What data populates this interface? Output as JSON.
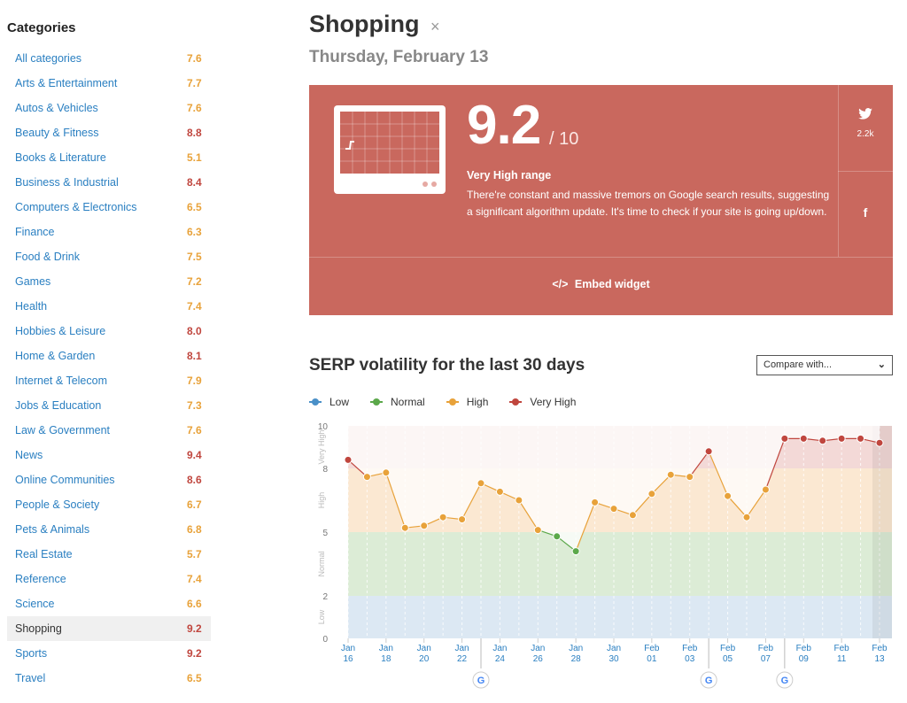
{
  "sidebar": {
    "title": "Categories",
    "items": [
      {
        "label": "All categories",
        "score": "7.6",
        "color": "#e8a23a"
      },
      {
        "label": "Arts & Entertainment",
        "score": "7.7",
        "color": "#e8a23a"
      },
      {
        "label": "Autos & Vehicles",
        "score": "7.6",
        "color": "#e8a23a"
      },
      {
        "label": "Beauty & Fitness",
        "score": "8.8",
        "color": "#c0463e"
      },
      {
        "label": "Books & Literature",
        "score": "5.1",
        "color": "#e8a23a"
      },
      {
        "label": "Business & Industrial",
        "score": "8.4",
        "color": "#c0463e"
      },
      {
        "label": "Computers & Electronics",
        "score": "6.5",
        "color": "#e8a23a"
      },
      {
        "label": "Finance",
        "score": "6.3",
        "color": "#e8a23a"
      },
      {
        "label": "Food & Drink",
        "score": "7.5",
        "color": "#e8a23a"
      },
      {
        "label": "Games",
        "score": "7.2",
        "color": "#e8a23a"
      },
      {
        "label": "Health",
        "score": "7.4",
        "color": "#e8a23a"
      },
      {
        "label": "Hobbies & Leisure",
        "score": "8.0",
        "color": "#c0463e"
      },
      {
        "label": "Home & Garden",
        "score": "8.1",
        "color": "#c0463e"
      },
      {
        "label": "Internet & Telecom",
        "score": "7.9",
        "color": "#e8a23a"
      },
      {
        "label": "Jobs & Education",
        "score": "7.3",
        "color": "#e8a23a"
      },
      {
        "label": "Law & Government",
        "score": "7.6",
        "color": "#e8a23a"
      },
      {
        "label": "News",
        "score": "9.4",
        "color": "#c0463e"
      },
      {
        "label": "Online Communities",
        "score": "8.6",
        "color": "#c0463e"
      },
      {
        "label": "People & Society",
        "score": "6.7",
        "color": "#e8a23a"
      },
      {
        "label": "Pets & Animals",
        "score": "6.8",
        "color": "#e8a23a"
      },
      {
        "label": "Real Estate",
        "score": "5.7",
        "color": "#e8a23a"
      },
      {
        "label": "Reference",
        "score": "7.4",
        "color": "#e8a23a"
      },
      {
        "label": "Science",
        "score": "6.6",
        "color": "#e8a23a"
      },
      {
        "label": "Shopping",
        "score": "9.2",
        "color": "#c0463e",
        "active": true
      },
      {
        "label": "Sports",
        "score": "9.2",
        "color": "#c0463e"
      },
      {
        "label": "Travel",
        "score": "6.5",
        "color": "#e8a23a"
      }
    ]
  },
  "header": {
    "title": "Shopping",
    "close_icon": "×",
    "date": "Thursday, February 13"
  },
  "card": {
    "score": "9.2",
    "score_out_of": "/ 10",
    "range": "Very High range",
    "description": "There're constant and massive tremors on Google search results, suggesting a significant algorithm update. It's time to check if your site is going up/down.",
    "twitter_icon": "twitter-icon",
    "twitter_count": "2.2k",
    "facebook_icon": "f",
    "embed_label": "Embed widget",
    "embed_icon": "</>",
    "bg_color": "#c9685e"
  },
  "chart_section": {
    "title": "SERP volatility for the last 30 days",
    "compare_placeholder": "Compare with...",
    "legend": [
      {
        "label": "Low",
        "color": "#4a90c8"
      },
      {
        "label": "Normal",
        "color": "#5ba84a"
      },
      {
        "label": "High",
        "color": "#e8a23a"
      },
      {
        "label": "Very High",
        "color": "#c0463e"
      }
    ]
  },
  "chart_data": {
    "type": "line",
    "title": "",
    "xlabel": "",
    "ylabel": "",
    "ylim": [
      0,
      10
    ],
    "yticks": [
      0,
      2,
      5,
      8,
      10
    ],
    "bands": [
      {
        "label": "Low",
        "from": 0,
        "to": 2,
        "color": "#dce8f3"
      },
      {
        "label": "Normal",
        "from": 2,
        "to": 5,
        "color": "#dcecd6"
      },
      {
        "label": "High",
        "from": 5,
        "to": 8,
        "color": "#fbe8d2"
      },
      {
        "label": "Very High",
        "from": 8,
        "to": 10,
        "color": "#f3d9d7"
      }
    ],
    "x_ticks": [
      [
        "Jan",
        "16"
      ],
      [
        "Jan",
        "18"
      ],
      [
        "Jan",
        "20"
      ],
      [
        "Jan",
        "22"
      ],
      [
        "Jan",
        "24"
      ],
      [
        "Jan",
        "26"
      ],
      [
        "Jan",
        "28"
      ],
      [
        "Jan",
        "30"
      ],
      [
        "Feb",
        "01"
      ],
      [
        "Feb",
        "03"
      ],
      [
        "Feb",
        "05"
      ],
      [
        "Feb",
        "07"
      ],
      [
        "Feb",
        "09"
      ],
      [
        "Feb",
        "11"
      ],
      [
        "Feb",
        "13"
      ]
    ],
    "x": [
      "Jan 16",
      "Jan 17",
      "Jan 18",
      "Jan 19",
      "Jan 20",
      "Jan 21",
      "Jan 22",
      "Jan 23",
      "Jan 24",
      "Jan 25",
      "Jan 26",
      "Jan 27",
      "Jan 28",
      "Jan 29",
      "Jan 30",
      "Jan 31",
      "Feb 01",
      "Feb 02",
      "Feb 03",
      "Feb 04",
      "Feb 05",
      "Feb 06",
      "Feb 07",
      "Feb 08",
      "Feb 09",
      "Feb 10",
      "Feb 11",
      "Feb 12",
      "Feb 13"
    ],
    "values": [
      8.4,
      7.6,
      7.8,
      5.2,
      5.3,
      5.7,
      5.6,
      7.3,
      6.9,
      6.5,
      5.1,
      4.8,
      4.1,
      6.4,
      6.1,
      5.8,
      6.8,
      7.7,
      7.6,
      8.8,
      6.7,
      5.7,
      7.0,
      9.4,
      9.4,
      9.3,
      9.4,
      9.4,
      9.2
    ],
    "series_colors": {
      "low": "#4a90c8",
      "normal": "#5ba84a",
      "high": "#e8a23a",
      "very_high": "#c0463e"
    },
    "google_updates": [
      "Jan 23",
      "Feb 04",
      "Feb 08"
    ],
    "google_icon": "G",
    "band_labels": [
      "Low",
      "Normal",
      "High",
      "Very High"
    ]
  }
}
